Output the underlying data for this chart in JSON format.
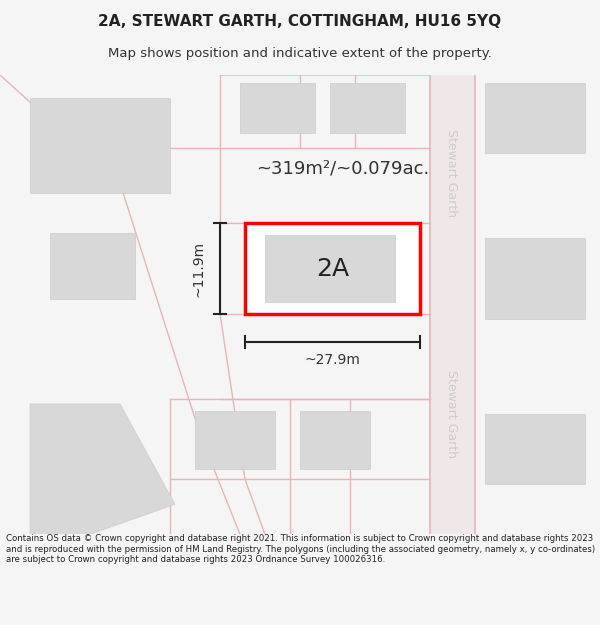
{
  "title_line1": "2A, STEWART GARTH, COTTINGHAM, HU16 5YQ",
  "title_line2": "Map shows position and indicative extent of the property.",
  "footer_text": "Contains OS data © Crown copyright and database right 2021. This information is subject to Crown copyright and database rights 2023 and is reproduced with the permission of HM Land Registry. The polygons (including the associated geometry, namely x, y co-ordinates) are subject to Crown copyright and database rights 2023 Ordnance Survey 100026316.",
  "bg_color": "#f5f5f5",
  "map_bg": "#ffffff",
  "road_color": "#e8b4b8",
  "road_color2": "#f0c8cc",
  "building_fill": "#d8d8d8",
  "building_edge": "#cccccc",
  "plot_fill": "#ffffff",
  "plot_edge": "#ff0000",
  "plot_label": "2A",
  "area_label": "~319m²/~0.079ac.",
  "dim_width_label": "~27.9m",
  "dim_height_label": "~11.9m",
  "road_label": "Stewart Garth",
  "road_label_color": "#cccccc"
}
